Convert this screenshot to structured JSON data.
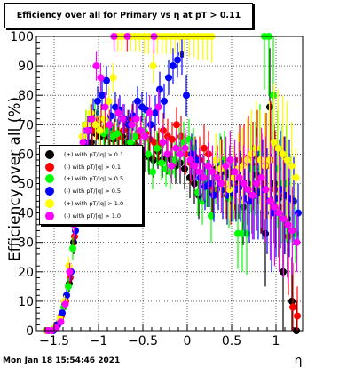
{
  "title": "Efficiency over all for Primary vs   η at pT > 0.11",
  "footer": "Mon Jan 18 15:54:46 2021",
  "chart_data": {
    "type": "scatter",
    "title": "Efficiency over all for Primary vs   η at pT > 0.11",
    "xlabel": "η",
    "ylabel": "Efficiency over all (%)",
    "xlim": [
      -1.7,
      1.3
    ],
    "ylim": [
      0,
      100
    ],
    "xticks": [
      -1.5,
      -1,
      -0.5,
      0,
      0.5,
      1
    ],
    "xtick_labels": [
      "−1.5",
      "−1",
      "−0.5",
      "0",
      "0.5",
      "1"
    ],
    "yticks": [
      0,
      10,
      20,
      30,
      40,
      50,
      60,
      70,
      80,
      90,
      100
    ],
    "grid": true,
    "legend_position": "left-middle",
    "series": [
      {
        "name": "(+) with pT/|q| > 0.1",
        "color": "#000000",
        "x": [
          -1.58,
          -1.53,
          -1.48,
          -1.43,
          -1.38,
          -1.33,
          -1.28,
          -1.23,
          -1.18,
          -1.13,
          -1.08,
          -1.03,
          -0.98,
          -0.93,
          -0.88,
          -0.83,
          -0.78,
          -0.73,
          -0.68,
          -0.63,
          -0.58,
          -0.53,
          -0.48,
          -0.43,
          -0.38,
          -0.33,
          -0.28,
          -0.23,
          -0.18,
          -0.13,
          -0.08,
          -0.03,
          0.03,
          0.08,
          0.13,
          0.18,
          0.23,
          0.28,
          0.33,
          0.38,
          0.43,
          0.48,
          0.53,
          0.58,
          0.63,
          0.68,
          0.73,
          0.78,
          0.83,
          0.88,
          0.93,
          0.98,
          1.03,
          1.08,
          1.13,
          1.18,
          1.23
        ],
        "y": [
          0,
          0,
          1,
          4,
          9,
          16,
          30,
          46,
          55,
          60,
          64,
          67,
          66,
          68,
          66,
          65,
          67,
          66,
          64,
          62,
          63,
          62,
          60,
          59,
          58,
          61,
          58,
          59,
          58,
          56,
          57,
          55,
          52,
          50,
          46,
          52,
          50,
          47,
          55,
          56,
          54,
          53,
          52,
          50,
          42,
          50,
          48,
          53,
          50,
          33,
          76,
          50,
          45,
          20,
          38,
          10,
          0
        ],
        "yerr": [
          0,
          0,
          1,
          1,
          2,
          3,
          4,
          5,
          5,
          5,
          5,
          5,
          5,
          5,
          5,
          5,
          5,
          5,
          5,
          5,
          5,
          5,
          6,
          6,
          6,
          6,
          6,
          6,
          6,
          6,
          7,
          7,
          7,
          7,
          8,
          8,
          8,
          9,
          9,
          10,
          10,
          10,
          11,
          12,
          13,
          14,
          15,
          16,
          17,
          18,
          20,
          20,
          20,
          20,
          20,
          15,
          10
        ]
      },
      {
        "name": "(-) with pT/|q| > 0.1",
        "color": "#ff0000",
        "x": [
          -1.57,
          -1.52,
          -1.47,
          -1.42,
          -1.37,
          -1.32,
          -1.27,
          -1.22,
          -1.17,
          -1.12,
          -1.07,
          -1.02,
          -0.97,
          -0.92,
          -0.87,
          -0.82,
          -0.77,
          -0.72,
          -0.67,
          -0.62,
          -0.57,
          -0.52,
          -0.47,
          -0.42,
          -0.37,
          -0.32,
          -0.27,
          -0.22,
          -0.17,
          -0.12,
          -0.07,
          -0.02,
          0.04,
          0.09,
          0.14,
          0.19,
          0.24,
          0.29,
          0.34,
          0.39,
          0.44,
          0.49,
          0.54,
          0.59,
          0.64,
          0.69,
          0.74,
          0.79,
          0.84,
          0.89,
          0.94,
          0.99,
          1.04,
          1.09,
          1.14,
          1.19,
          1.24
        ],
        "y": [
          0,
          0,
          2,
          5,
          10,
          18,
          32,
          48,
          58,
          62,
          68,
          70,
          72,
          69,
          68,
          67,
          66,
          68,
          70,
          72,
          66,
          68,
          67,
          65,
          64,
          63,
          68,
          66,
          65,
          70,
          66,
          60,
          57,
          59,
          58,
          62,
          60,
          48,
          54,
          55,
          48,
          46,
          49,
          58,
          57,
          59,
          56,
          59,
          50,
          56,
          58,
          48,
          42,
          46,
          32,
          8,
          5
        ],
        "yerr": [
          0,
          0,
          1,
          1,
          2,
          3,
          4,
          5,
          5,
          5,
          5,
          5,
          5,
          5,
          5,
          5,
          5,
          5,
          5,
          5,
          5,
          5,
          6,
          6,
          6,
          6,
          6,
          6,
          6,
          6,
          7,
          7,
          7,
          7,
          8,
          8,
          8,
          9,
          9,
          10,
          10,
          10,
          11,
          12,
          13,
          14,
          15,
          16,
          17,
          18,
          20,
          20,
          20,
          20,
          20,
          15,
          10
        ]
      },
      {
        "name": "(+) with pT/|q| > 0.5",
        "color": "#00ff00",
        "x": [
          -1.59,
          -1.54,
          -1.49,
          -1.44,
          -1.39,
          -1.34,
          -1.29,
          -1.24,
          -1.19,
          -1.14,
          -1.09,
          -1.04,
          -0.99,
          -0.94,
          -0.89,
          -0.84,
          -0.79,
          -0.74,
          -0.69,
          -0.64,
          -0.59,
          -0.54,
          -0.49,
          -0.44,
          -0.39,
          -0.34,
          -0.29,
          -0.24,
          -0.19,
          -0.14,
          -0.09,
          -0.04,
          0.02,
          0.07,
          0.12,
          0.17,
          0.22,
          0.27,
          0.32,
          0.37,
          0.42,
          0.47,
          0.52,
          0.57,
          0.62,
          0.67,
          0.72,
          0.77,
          0.82,
          0.87,
          0.92,
          0.97,
          1.02,
          1.07,
          1.12,
          1.17,
          1.22
        ],
        "y": [
          0,
          0,
          1,
          3,
          8,
          15,
          28,
          44,
          60,
          70,
          72,
          74,
          68,
          67,
          68,
          66,
          67,
          62,
          60,
          64,
          66,
          58,
          68,
          60,
          54,
          62,
          57,
          55,
          54,
          58,
          62,
          64,
          65,
          62,
          47,
          44,
          50,
          39,
          52,
          57,
          58,
          45,
          48,
          33,
          33,
          33,
          55,
          55,
          60,
          100,
          100,
          80,
          55,
          50,
          50,
          45,
          33
        ],
        "yerr": [
          0,
          0,
          1,
          1,
          2,
          3,
          4,
          5,
          5,
          5,
          5,
          5,
          5,
          5,
          5,
          5,
          5,
          5,
          5,
          5,
          5,
          5,
          6,
          6,
          6,
          6,
          6,
          6,
          6,
          6,
          7,
          7,
          7,
          7,
          8,
          8,
          8,
          9,
          9,
          10,
          10,
          10,
          11,
          12,
          13,
          14,
          15,
          16,
          17,
          18,
          20,
          20,
          20,
          20,
          20,
          15,
          10
        ]
      },
      {
        "name": "(-) with pT/|q| > 0.5",
        "color": "#0000ff",
        "x": [
          -1.56,
          -1.51,
          -1.46,
          -1.41,
          -1.36,
          -1.31,
          -1.26,
          -1.21,
          -1.16,
          -1.11,
          -1.06,
          -1.01,
          -0.96,
          -0.91,
          -0.86,
          -0.81,
          -0.76,
          -0.71,
          -0.66,
          -0.61,
          -0.56,
          -0.51,
          -0.46,
          -0.41,
          -0.36,
          -0.31,
          -0.26,
          -0.21,
          -0.16,
          -0.11,
          -0.06,
          -0.01,
          0.05,
          0.1,
          0.15,
          0.2,
          0.25,
          0.3,
          0.35,
          0.4,
          0.45,
          0.5,
          0.55,
          0.6,
          0.65,
          0.7,
          0.75,
          0.8,
          0.85,
          0.9,
          0.95,
          1.0,
          1.05,
          1.1,
          1.15,
          1.2,
          1.25
        ],
        "y": [
          0,
          0,
          2,
          6,
          12,
          20,
          34,
          50,
          64,
          68,
          74,
          78,
          80,
          85,
          73,
          76,
          75,
          72,
          70,
          73,
          78,
          76,
          75,
          70,
          74,
          82,
          78,
          86,
          90,
          92,
          94,
          80,
          60,
          58,
          52,
          49,
          50,
          46,
          50,
          48,
          46,
          47,
          48,
          49,
          45,
          44,
          46,
          47,
          48,
          44,
          40,
          45,
          48,
          46,
          45,
          44,
          40
        ],
        "yerr": [
          0,
          0,
          1,
          1,
          2,
          3,
          4,
          5,
          5,
          5,
          5,
          5,
          5,
          5,
          5,
          5,
          5,
          5,
          5,
          5,
          5,
          5,
          6,
          6,
          6,
          6,
          6,
          6,
          6,
          6,
          7,
          7,
          7,
          7,
          8,
          8,
          8,
          9,
          9,
          10,
          10,
          10,
          11,
          12,
          13,
          14,
          15,
          16,
          17,
          18,
          20,
          20,
          20,
          20,
          20,
          15,
          10
        ]
      },
      {
        "name": "(+) with pT/|q| > 1.0",
        "color": "#ffff00",
        "x": [
          -1.585,
          -1.535,
          -1.485,
          -1.435,
          -1.385,
          -1.335,
          -1.285,
          -1.235,
          -1.185,
          -1.135,
          -1.085,
          -1.035,
          -0.985,
          -0.935,
          -0.885,
          -0.835,
          -0.785,
          -0.735,
          -0.685,
          -0.635,
          -0.585,
          -0.535,
          -0.485,
          -0.435,
          -0.385,
          -0.335,
          -0.285,
          -0.235,
          -0.185,
          -0.135,
          -0.085,
          -0.035,
          0.025,
          0.075,
          0.125,
          0.175,
          0.225,
          0.275,
          0.325,
          0.375,
          0.425,
          0.475,
          0.525,
          0.575,
          0.625,
          0.675,
          0.725,
          0.775,
          0.825,
          0.875,
          0.925,
          0.975,
          1.025,
          1.075,
          1.125,
          1.175,
          1.225
        ],
        "y": [
          0,
          0,
          1,
          4,
          10,
          22,
          38,
          56,
          66,
          70,
          74,
          70,
          68,
          72,
          78,
          86,
          100,
          100,
          100,
          100,
          100,
          100,
          100,
          100,
          90,
          100,
          100,
          100,
          100,
          100,
          100,
          100,
          100,
          100,
          100,
          100,
          100,
          100,
          58,
          55,
          50,
          48,
          52,
          55,
          56,
          58,
          60,
          62,
          58,
          56,
          58,
          64,
          62,
          60,
          58,
          56,
          52
        ],
        "yerr": [
          0,
          0,
          1,
          1,
          2,
          3,
          4,
          5,
          5,
          5,
          5,
          5,
          5,
          5,
          5,
          5,
          5,
          5,
          5,
          5,
          5,
          5,
          6,
          6,
          6,
          6,
          6,
          6,
          6,
          6,
          7,
          7,
          7,
          7,
          8,
          8,
          8,
          9,
          9,
          10,
          10,
          10,
          11,
          12,
          13,
          14,
          15,
          16,
          17,
          18,
          20,
          20,
          20,
          20,
          20,
          15,
          10
        ]
      },
      {
        "name": "(-) with pT/|q| > 1.0",
        "color": "#ff00ff",
        "x": [
          -1.575,
          -1.525,
          -1.475,
          -1.425,
          -1.375,
          -1.325,
          -1.275,
          -1.225,
          -1.175,
          -1.125,
          -1.075,
          -1.025,
          -0.975,
          -0.925,
          -0.875,
          -0.825,
          -0.775,
          -0.725,
          -0.675,
          -0.625,
          -0.575,
          -0.525,
          -0.475,
          -0.425,
          -0.375,
          -0.325,
          -0.275,
          -0.225,
          -0.175,
          -0.125,
          -0.075,
          -0.025,
          0.035,
          0.085,
          0.135,
          0.185,
          0.235,
          0.285,
          0.335,
          0.385,
          0.435,
          0.485,
          0.535,
          0.585,
          0.635,
          0.685,
          0.735,
          0.785,
          0.835,
          0.885,
          0.935,
          0.985,
          1.035,
          1.085,
          1.135,
          1.185,
          1.235
        ],
        "y": [
          0,
          0,
          1,
          3,
          9,
          20,
          36,
          54,
          64,
          68,
          72,
          90,
          86,
          76,
          70,
          100,
          74,
          72,
          100,
          70,
          72,
          68,
          66,
          74,
          100,
          76,
          64,
          60,
          56,
          62,
          60,
          62,
          58,
          56,
          54,
          52,
          56,
          54,
          52,
          50,
          56,
          58,
          54,
          52,
          50,
          48,
          46,
          50,
          52,
          48,
          44,
          42,
          40,
          38,
          36,
          34,
          30
        ],
        "yerr": [
          0,
          0,
          1,
          1,
          2,
          3,
          4,
          5,
          5,
          5,
          5,
          5,
          5,
          5,
          5,
          5,
          5,
          5,
          5,
          5,
          5,
          5,
          6,
          6,
          6,
          6,
          6,
          6,
          6,
          6,
          7,
          7,
          7,
          7,
          8,
          8,
          8,
          9,
          9,
          10,
          10,
          10,
          11,
          12,
          13,
          14,
          15,
          16,
          17,
          18,
          20,
          20,
          20,
          20,
          20,
          15,
          10
        ]
      }
    ]
  }
}
